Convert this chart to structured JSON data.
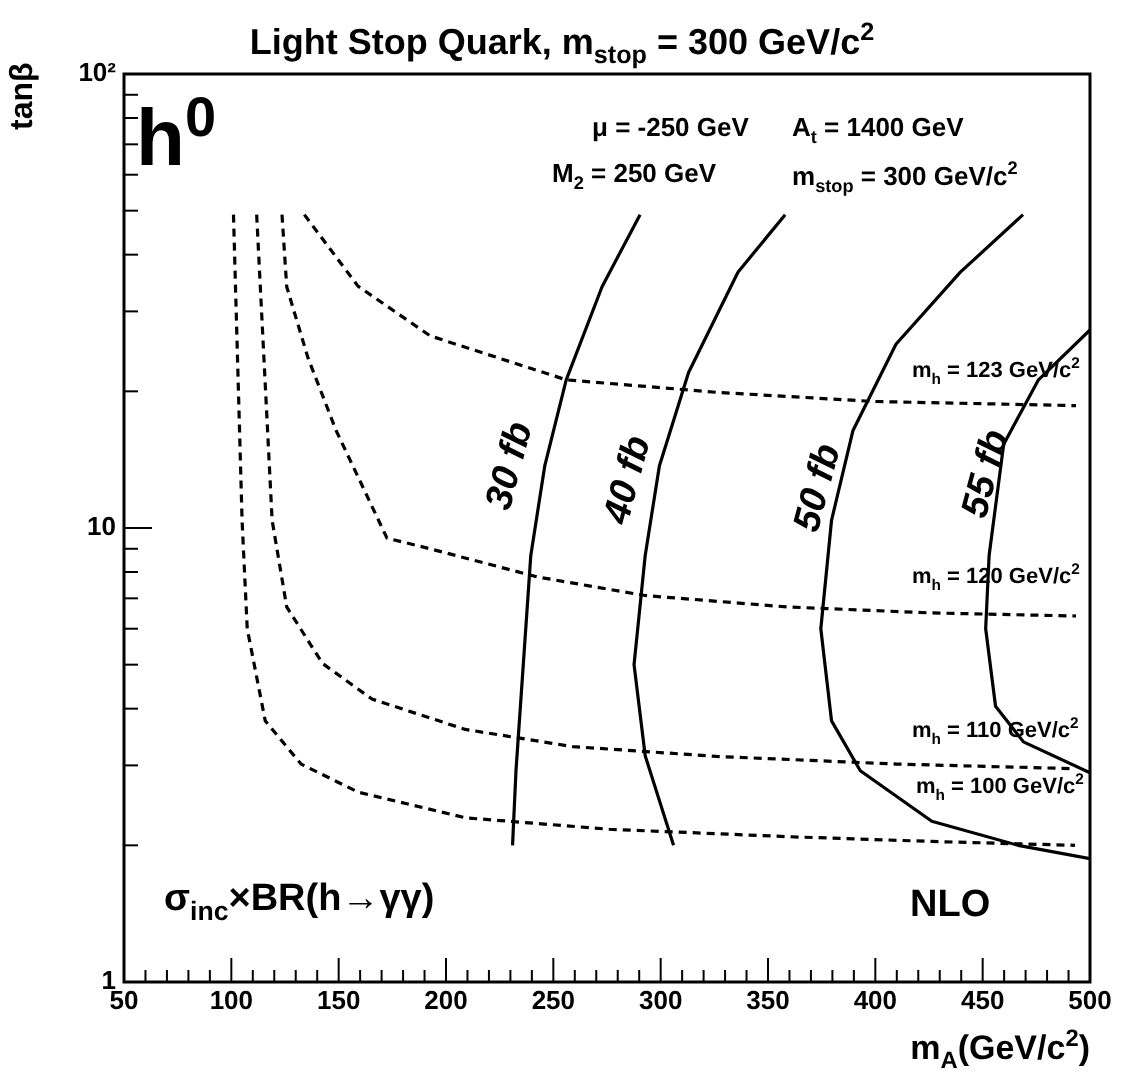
{
  "chart_data": {
    "type": "line",
    "title": "Light Stop Quark, m$_{stop}$ = 300 GeV/c$^{2}$",
    "xlabel": "m$_{A}$(GeV/c$^{2}$)",
    "ylabel": "tanβ",
    "log": "y",
    "grid": false,
    "legend": false,
    "marker": "none",
    "xlim": [
      50,
      500
    ],
    "ylim": [
      1,
      100
    ],
    "xticks": [
      50,
      {
        "value": 60,
        "label": null
      },
      {
        "value": 70,
        "label": null
      },
      {
        "value": 80,
        "label": null
      },
      {
        "value": 90,
        "label": null
      },
      100,
      {
        "value": 110,
        "label": null
      },
      {
        "value": 120,
        "label": null
      },
      {
        "value": 130,
        "label": null
      },
      {
        "value": 140,
        "label": null
      },
      150,
      {
        "value": 160,
        "label": null
      },
      {
        "value": 170,
        "label": null
      },
      {
        "value": 180,
        "label": null
      },
      {
        "value": 190,
        "label": null
      },
      200,
      {
        "value": 210,
        "label": null
      },
      {
        "value": 220,
        "label": null
      },
      {
        "value": 230,
        "label": null
      },
      {
        "value": 240,
        "label": null
      },
      250,
      {
        "value": 260,
        "label": null
      },
      {
        "value": 270,
        "label": null
      },
      {
        "value": 280,
        "label": null
      },
      {
        "value": 290,
        "label": null
      },
      300,
      {
        "value": 310,
        "label": null
      },
      {
        "value": 320,
        "label": null
      },
      {
        "value": 330,
        "label": null
      },
      {
        "value": 340,
        "label": null
      },
      350,
      {
        "value": 360,
        "label": null
      },
      {
        "value": 370,
        "label": null
      },
      {
        "value": 380,
        "label": null
      },
      {
        "value": 390,
        "label": null
      },
      400,
      {
        "value": 410,
        "label": null
      },
      {
        "value": 420,
        "label": null
      },
      {
        "value": 430,
        "label": null
      },
      {
        "value": 440,
        "label": null
      },
      450,
      {
        "value": 460,
        "label": null
      },
      {
        "value": 470,
        "label": null
      },
      {
        "value": 480,
        "label": null
      },
      {
        "value": 490,
        "label": null
      },
      500
    ],
    "yticks": [
      1,
      {
        "value": 2,
        "label": null
      },
      {
        "value": 3,
        "label": null
      },
      {
        "value": 4,
        "label": null
      },
      {
        "value": 5,
        "label": null
      },
      {
        "value": 6,
        "label": null
      },
      {
        "value": 7,
        "label": null
      },
      {
        "value": 8,
        "label": null
      },
      {
        "value": 9,
        "label": null
      },
      10,
      {
        "value": 20,
        "label": null
      },
      {
        "value": 30,
        "label": null
      },
      {
        "value": 40,
        "label": null
      },
      {
        "value": 50,
        "label": null
      },
      {
        "value": 60,
        "label": null
      },
      {
        "value": 70,
        "label": null
      },
      {
        "value": 80,
        "label": null
      },
      {
        "value": 90,
        "label": null
      },
      {
        "value": 100,
        "label": "10²"
      }
    ],
    "series": [
      {
        "color": "#000000",
        "line_style": "dashed",
        "x": [
          134,
          159,
          192.6,
          256,
          326,
          399,
          493.5
        ],
        "values": [
          49,
          34.1,
          26.5,
          21.2,
          19.9,
          19,
          18.6
        ]
      },
      {
        "color": "#000000",
        "line_style": "dashed",
        "x": [
          123.6,
          125.8,
          135.7,
          148.8,
          172.5,
          192.6,
          242.7,
          292.8,
          359,
          426,
          493.5
        ],
        "values": [
          49,
          34,
          23.7,
          16.4,
          9.5,
          9,
          7.8,
          7.1,
          6.7,
          6.5,
          6.4
        ]
      },
      {
        "color": "#000000",
        "line_style": "dashed",
        "x": [
          111.8,
          119,
          125.8,
          142.5,
          165.5,
          209,
          259,
          326,
          410,
          493
        ],
        "values": [
          49,
          10.4,
          6.7,
          5.03,
          4.2,
          3.6,
          3.3,
          3.14,
          3.02,
          2.95
        ]
      },
      {
        "color": "#000000",
        "line_style": "dashed",
        "x": [
          101,
          105,
          107.4,
          115.8,
          132.5,
          159,
          209,
          276,
          359,
          426,
          493
        ],
        "values": [
          49,
          10.4,
          6,
          3.76,
          3.02,
          2.62,
          2.3,
          2.17,
          2.09,
          2.04,
          2
        ]
      },
      {
        "color": "#000000",
        "line_style": "solid",
        "x": [
          290.4,
          272.7,
          256,
          246,
          239.5,
          236,
          232.6,
          231
        ],
        "values": [
          49,
          34,
          21.2,
          13.7,
          8.7,
          5,
          2.92,
          2
        ]
      },
      {
        "color": "#000000",
        "line_style": "solid",
        "x": [
          358,
          336,
          313,
          299.4,
          292.8,
          287.6,
          292.8,
          306
        ],
        "values": [
          49,
          36.6,
          22,
          13.7,
          8.7,
          5,
          3.15,
          2
        ]
      },
      {
        "color": "#000000",
        "line_style": "solid",
        "x": [
          468.8,
          439.6,
          409.6,
          389.6,
          379.6,
          374.6,
          379.6,
          393,
          426.3,
          466.5,
          500
        ],
        "values": [
          49,
          36.6,
          25.4,
          16.4,
          10.4,
          6,
          3.76,
          2.92,
          2.26,
          2,
          1.87
        ]
      },
      {
        "color": "#000000",
        "line_style": "solid",
        "x": [
          500,
          476,
          459.8,
          453,
          451.4,
          456,
          469,
          500
        ],
        "values": [
          27.3,
          21.2,
          15.3,
          8.7,
          6,
          4.05,
          3.38,
          2.89
        ]
      }
    ],
    "annotations": [
      "h$^{0}$",
      "μ = -250 GeV",
      "A$_{t}$ = 1400 GeV",
      "M$_{2}$ = 250 GeV",
      "m$_{stop}$ = 300 GeV/c$^{2}$",
      "σ$_{inc}$×BR(h→γγ)",
      "NLO",
      "30 fb",
      "40 fb",
      "50 fb",
      "55 fb",
      "m$_{h}$ = 123 GeV/c$^{2}$",
      "m$_{h}$ = 120 GeV/c$^{2}$",
      "m$_{h}$ = 110 GeV/c$^{2}$",
      "m$_{h}$ = 100 GeV/c$^{2}$"
    ]
  }
}
